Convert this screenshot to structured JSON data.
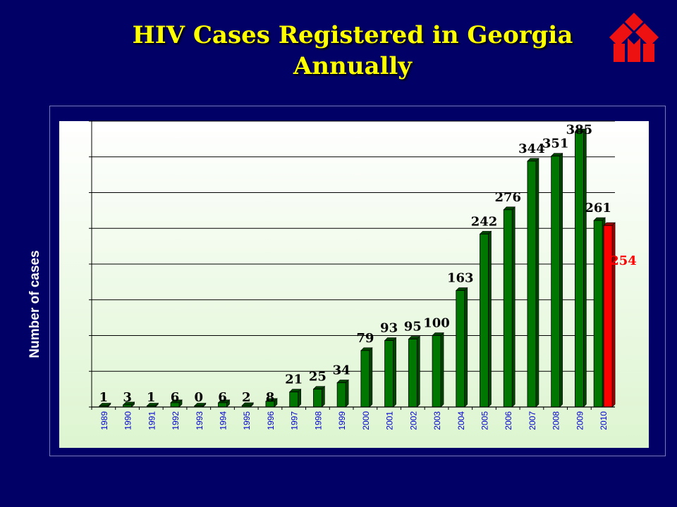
{
  "slide": {
    "title_line1": "HIV Cases Registered in Georgia",
    "title_line2": "Annually",
    "logo_icon": "red-house-emblem-icon",
    "colors": {
      "background": "#000066",
      "title": "#ffff00",
      "bar_green": "#007700",
      "bar_red": "#ff0000",
      "plot_bg_top": "#ffffff",
      "plot_bg_bottom": "#ddf5d0"
    }
  },
  "chart_data": {
    "type": "bar",
    "title": "HIV Cases Registered in Georgia Annually",
    "xlabel": "",
    "ylabel": "Number of cases",
    "ylim": [
      0,
      400
    ],
    "y_gridlines": [
      0,
      50,
      100,
      150,
      200,
      250,
      300,
      350,
      400
    ],
    "grid": true,
    "legend": "none",
    "categories": [
      "1989",
      "1990",
      "1991",
      "1992",
      "1993",
      "1994",
      "1995",
      "1996",
      "1997",
      "1998",
      "1999",
      "2000",
      "2001",
      "2002",
      "2003",
      "2004",
      "2005",
      "2006",
      "2007",
      "2008",
      "2009",
      "2010"
    ],
    "series": [
      {
        "color": "#007700",
        "values": [
          1,
          3,
          1,
          6,
          0,
          6,
          2,
          8,
          21,
          25,
          34,
          79,
          93,
          95,
          100,
          163,
          242,
          276,
          344,
          351,
          385,
          261
        ],
        "labels": [
          "1",
          "3",
          "1",
          "6",
          "0",
          "6",
          "2",
          "8",
          "21",
          "25",
          "34",
          "79",
          "93",
          "95",
          "100",
          "163",
          "242",
          "276",
          "344",
          "351",
          "385",
          "261"
        ]
      },
      {
        "color": "#ff0000",
        "category": "2010",
        "value": 254,
        "label": "254"
      }
    ]
  }
}
